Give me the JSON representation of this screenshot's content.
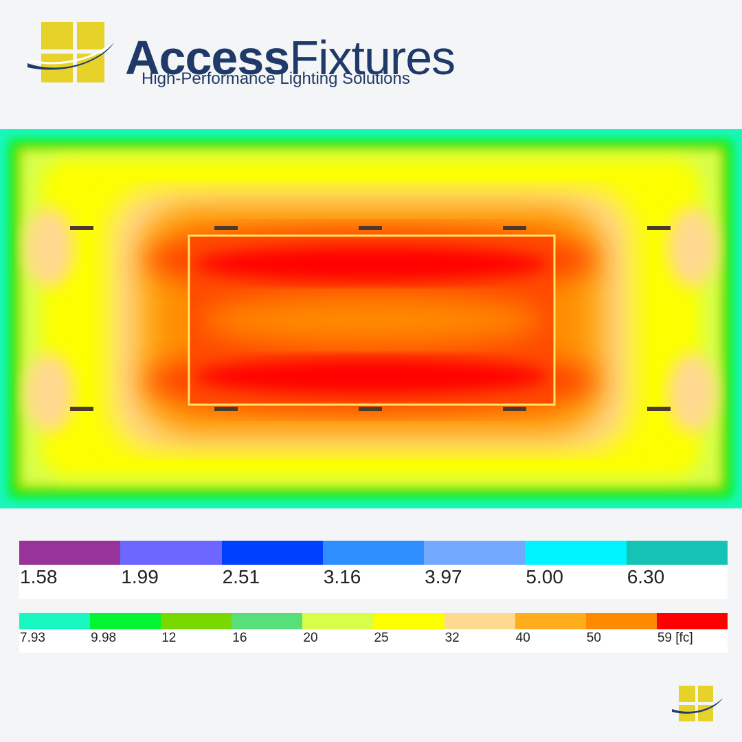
{
  "brand": {
    "name_bold": "Access",
    "name_regular": "Fixtures",
    "tagline": "High-Performance Lighting Solutions",
    "colors": {
      "navy": "#1f3a68",
      "gold": "#e6d228"
    }
  },
  "diagram": {
    "type": "illuminance-heatmap",
    "unit": "fc",
    "fixture_count": 10
  },
  "legend": {
    "row1": [
      {
        "label": "1.58",
        "color": "#973399"
      },
      {
        "label": "1.99",
        "color": "#6d66ff"
      },
      {
        "label": "2.51",
        "color": "#0041ff"
      },
      {
        "label": "3.16",
        "color": "#2f8fff"
      },
      {
        "label": "3.97",
        "color": "#73a8ff"
      },
      {
        "label": "5.00",
        "color": "#00f4ff"
      },
      {
        "label": "6.30",
        "color": "#14c3b3"
      }
    ],
    "row2": [
      {
        "label": "7.93",
        "color": "#19f7c0"
      },
      {
        "label": "9.98",
        "color": "#02f531"
      },
      {
        "label": "12",
        "color": "#79d800"
      },
      {
        "label": "16",
        "color": "#58df7a"
      },
      {
        "label": "20",
        "color": "#d8fe4a"
      },
      {
        "label": "25",
        "color": "#fcff00"
      },
      {
        "label": "32",
        "color": "#ffd990"
      },
      {
        "label": "40",
        "color": "#ffad1d"
      },
      {
        "label": "50",
        "color": "#ff8a00"
      },
      {
        "label": "59 [fc]",
        "color": "#ff0000"
      }
    ]
  }
}
